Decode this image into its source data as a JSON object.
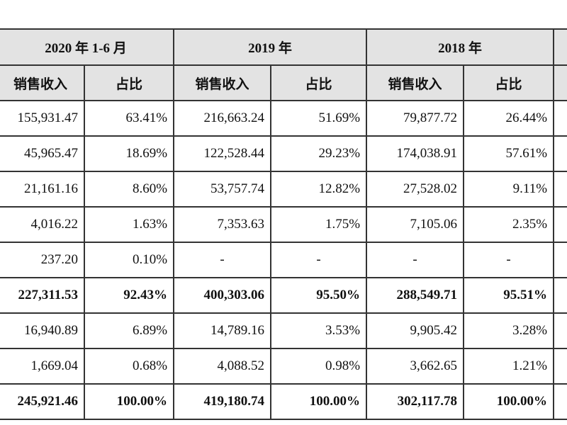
{
  "table": {
    "periods": [
      "2020 年 1-6 月",
      "2019 年",
      "2018 年"
    ],
    "sub_headers": [
      {
        "left": "销售收入",
        "right": "占比"
      },
      {
        "left": "销售收入",
        "right": "占比"
      },
      {
        "left": "销售收入",
        "right": "占比"
      }
    ],
    "rows": [
      {
        "bold": false,
        "cells": [
          "155,931.47",
          "63.41%",
          "216,663.24",
          "51.69%",
          "79,877.72",
          "26.44%"
        ]
      },
      {
        "bold": false,
        "cells": [
          "45,965.47",
          "18.69%",
          "122,528.44",
          "29.23%",
          "174,038.91",
          "57.61%"
        ]
      },
      {
        "bold": false,
        "cells": [
          "21,161.16",
          "8.60%",
          "53,757.74",
          "12.82%",
          "27,528.02",
          "9.11%"
        ]
      },
      {
        "bold": false,
        "cells": [
          "4,016.22",
          "1.63%",
          "7,353.63",
          "1.75%",
          "7,105.06",
          "2.35%"
        ]
      },
      {
        "bold": false,
        "cells": [
          "237.20",
          "0.10%",
          "-",
          "-",
          "-",
          "-"
        ]
      },
      {
        "bold": true,
        "cells": [
          "227,311.53",
          "92.43%",
          "400,303.06",
          "95.50%",
          "288,549.71",
          "95.51%"
        ]
      },
      {
        "bold": false,
        "cells": [
          "16,940.89",
          "6.89%",
          "14,789.16",
          "3.53%",
          "9,905.42",
          "3.28%"
        ]
      },
      {
        "bold": false,
        "cells": [
          "1,669.04",
          "0.68%",
          "4,088.52",
          "0.98%",
          "3,662.65",
          "1.21%"
        ]
      },
      {
        "bold": true,
        "cells": [
          "245,921.46",
          "100.00%",
          "419,180.74",
          "100.00%",
          "302,117.78",
          "100.00%"
        ]
      }
    ]
  }
}
